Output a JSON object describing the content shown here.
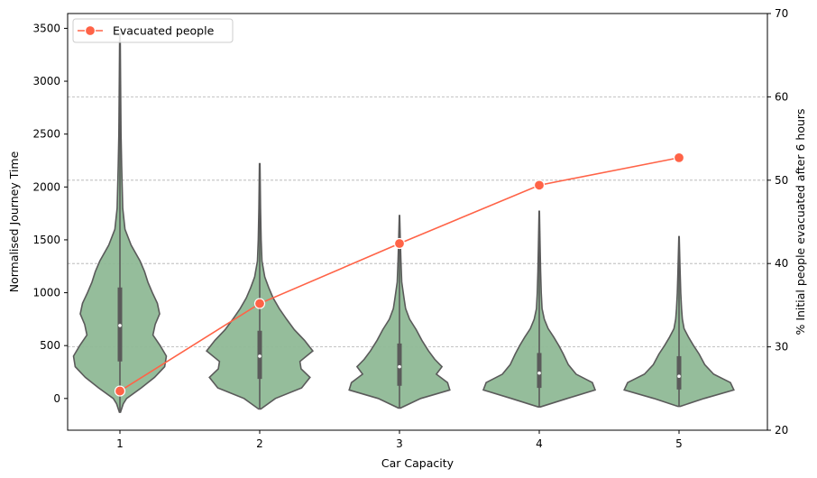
{
  "chart_data": {
    "type": "violin",
    "xlabel": "Car Capacity",
    "ylabel_left": "Normalised Journey Time",
    "ylabel_right": "% Initial people evacuated after 6 hours",
    "categories": [
      "1",
      "2",
      "3",
      "4",
      "5"
    ],
    "ylim_left": [
      -300,
      3640
    ],
    "yticks_left": [
      0,
      500,
      1000,
      1500,
      2000,
      2500,
      3000,
      3500
    ],
    "ylim_right": [
      20,
      70
    ],
    "yticks_right": [
      20,
      30,
      40,
      50,
      60,
      70
    ],
    "gridlines_right_axis": true,
    "violin_color": "#8fb996",
    "violins": [
      {
        "category": "1",
        "min": -130,
        "max": 3450,
        "q1": 350,
        "median": 690,
        "q3": 1050,
        "profile": [
          [
            -130,
            0.01
          ],
          [
            -50,
            0.06
          ],
          [
            0,
            0.12
          ],
          [
            100,
            0.38
          ],
          [
            200,
            0.62
          ],
          [
            300,
            0.8
          ],
          [
            400,
            0.83
          ],
          [
            500,
            0.72
          ],
          [
            600,
            0.59
          ],
          [
            700,
            0.63
          ],
          [
            800,
            0.71
          ],
          [
            900,
            0.67
          ],
          [
            1000,
            0.58
          ],
          [
            1100,
            0.5
          ],
          [
            1200,
            0.44
          ],
          [
            1300,
            0.36
          ],
          [
            1450,
            0.2
          ],
          [
            1600,
            0.09
          ],
          [
            1800,
            0.05
          ],
          [
            2000,
            0.04
          ],
          [
            2200,
            0.03
          ],
          [
            2500,
            0.02
          ],
          [
            3000,
            0.012
          ],
          [
            3450,
            0.005
          ]
        ]
      },
      {
        "category": "2",
        "min": -100,
        "max": 2220,
        "q1": 185,
        "median": 400,
        "q3": 640,
        "profile": [
          [
            -100,
            0.02
          ],
          [
            0,
            0.28
          ],
          [
            100,
            0.75
          ],
          [
            200,
            0.9
          ],
          [
            280,
            0.74
          ],
          [
            350,
            0.72
          ],
          [
            450,
            0.95
          ],
          [
            550,
            0.8
          ],
          [
            650,
            0.62
          ],
          [
            750,
            0.48
          ],
          [
            850,
            0.35
          ],
          [
            950,
            0.24
          ],
          [
            1050,
            0.16
          ],
          [
            1150,
            0.09
          ],
          [
            1300,
            0.04
          ],
          [
            1500,
            0.025
          ],
          [
            1800,
            0.015
          ],
          [
            2220,
            0.005
          ]
        ]
      },
      {
        "category": "3",
        "min": -90,
        "max": 1730,
        "q1": 120,
        "median": 300,
        "q3": 520,
        "profile": [
          [
            -90,
            0.02
          ],
          [
            0,
            0.38
          ],
          [
            80,
            0.9
          ],
          [
            150,
            0.86
          ],
          [
            230,
            0.66
          ],
          [
            300,
            0.76
          ],
          [
            370,
            0.63
          ],
          [
            450,
            0.52
          ],
          [
            550,
            0.4
          ],
          [
            650,
            0.3
          ],
          [
            750,
            0.18
          ],
          [
            850,
            0.11
          ],
          [
            950,
            0.08
          ],
          [
            1100,
            0.04
          ],
          [
            1300,
            0.025
          ],
          [
            1500,
            0.015
          ],
          [
            1730,
            0.004
          ]
        ]
      },
      {
        "category": "4",
        "min": -80,
        "max": 1770,
        "q1": 100,
        "median": 240,
        "q3": 430,
        "profile": [
          [
            -80,
            0.02
          ],
          [
            0,
            0.5
          ],
          [
            80,
            1.0
          ],
          [
            150,
            0.95
          ],
          [
            230,
            0.66
          ],
          [
            320,
            0.52
          ],
          [
            420,
            0.43
          ],
          [
            500,
            0.35
          ],
          [
            580,
            0.26
          ],
          [
            660,
            0.16
          ],
          [
            750,
            0.09
          ],
          [
            850,
            0.05
          ],
          [
            1000,
            0.035
          ],
          [
            1200,
            0.025
          ],
          [
            1450,
            0.015
          ],
          [
            1770,
            0.004
          ]
        ]
      },
      {
        "category": "5",
        "min": -75,
        "max": 1530,
        "q1": 85,
        "median": 210,
        "q3": 400,
        "profile": [
          [
            -75,
            0.02
          ],
          [
            0,
            0.45
          ],
          [
            80,
            0.98
          ],
          [
            150,
            0.92
          ],
          [
            230,
            0.62
          ],
          [
            320,
            0.46
          ],
          [
            420,
            0.36
          ],
          [
            500,
            0.26
          ],
          [
            580,
            0.17
          ],
          [
            660,
            0.09
          ],
          [
            750,
            0.06
          ],
          [
            850,
            0.045
          ],
          [
            1000,
            0.03
          ],
          [
            1200,
            0.02
          ],
          [
            1530,
            0.004
          ]
        ]
      }
    ],
    "series": [
      {
        "name": "Evacuated people",
        "axis": "right",
        "color": "#ff6347",
        "marker": "circle",
        "values": [
          24.7,
          35.2,
          42.4,
          49.4,
          52.7
        ]
      }
    ],
    "legend": {
      "position": "top-left",
      "entries": [
        "Evacuated people"
      ]
    }
  }
}
